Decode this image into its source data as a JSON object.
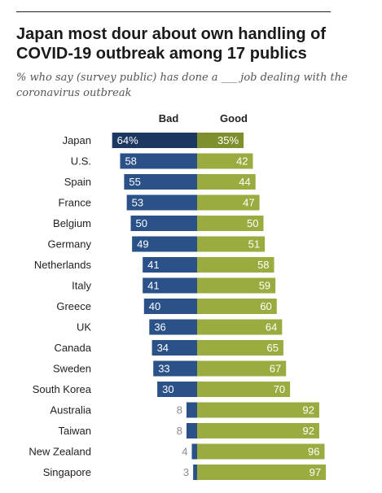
{
  "title": "Japan most dour about own handling of COVID-19 outbreak among 17 publics",
  "subtitle": "% who say (survey public) has done a ___ job dealing with the coronavirus outbreak",
  "colors": {
    "bad": "#2b5189",
    "bad_highlight": "#1c3861",
    "good": "#9aac3f",
    "good_highlight": "#7e8f2e",
    "label_small": "#8a8a8a"
  },
  "chart_data": {
    "type": "bar",
    "orientation": "horizontal-diverging",
    "categories": [
      "Japan",
      "U.S.",
      "Spain",
      "France",
      "Belgium",
      "Germany",
      "Netherlands",
      "Italy",
      "Greece",
      "UK",
      "Canada",
      "Sweden",
      "South Korea",
      "Australia",
      "Taiwan",
      "New Zealand",
      "Singapore"
    ],
    "series": [
      {
        "name": "Bad",
        "values": [
          64,
          58,
          55,
          53,
          50,
          49,
          41,
          41,
          40,
          36,
          34,
          33,
          30,
          8,
          8,
          4,
          3
        ],
        "labels": [
          "64%",
          "58",
          "55",
          "53",
          "50",
          "49",
          "41",
          "41",
          "40",
          "36",
          "34",
          "33",
          "30",
          "8",
          "8",
          "4",
          "3"
        ]
      },
      {
        "name": "Good",
        "values": [
          35,
          42,
          44,
          47,
          50,
          51,
          58,
          59,
          60,
          64,
          65,
          67,
          70,
          92,
          92,
          96,
          97
        ],
        "labels": [
          "35%",
          "42",
          "44",
          "47",
          "50",
          "51",
          "58",
          "59",
          "60",
          "64",
          "65",
          "67",
          "70",
          "92",
          "92",
          "96",
          "97"
        ]
      }
    ],
    "xlim": [
      0,
      100
    ],
    "grid": false,
    "legend": "column headers above bars"
  }
}
